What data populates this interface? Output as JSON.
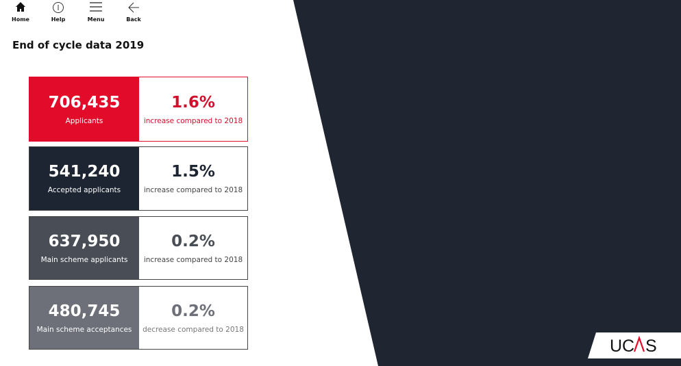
{
  "nav": [
    {
      "label": "Home",
      "icon": "home-icon"
    },
    {
      "label": "Help",
      "icon": "info-icon"
    },
    {
      "label": "Menu",
      "icon": "menu-icon"
    },
    {
      "label": "Back",
      "icon": "arrow-left-icon"
    }
  ],
  "title": "End of cycle data 2019",
  "cards": [
    {
      "value": "706,435",
      "label": "Applicants",
      "pct": "1.6%",
      "change": "increase compared to 2018",
      "color": "#e30b2a",
      "text": "#d0102c"
    },
    {
      "value": "541,240",
      "label": "Accepted applicants",
      "pct": "1.5%",
      "change": "increase compared to 2018",
      "color": "#1e2532",
      "text": "#1e2532"
    },
    {
      "value": "637,950",
      "label": "Main scheme applicants",
      "pct": "0.2%",
      "change": "increase compared to 2018",
      "color": "#494e56",
      "text": "#494e56"
    },
    {
      "value": "480,745",
      "label": "Main scheme acceptances",
      "pct": "0.2%",
      "change": "decrease compared to 2018",
      "color": "#6d7078",
      "text": "#6d7078"
    }
  ],
  "logo": "UCAS",
  "colors": {
    "dark_panel": "#1f2632",
    "accent": "#e30b2a"
  }
}
